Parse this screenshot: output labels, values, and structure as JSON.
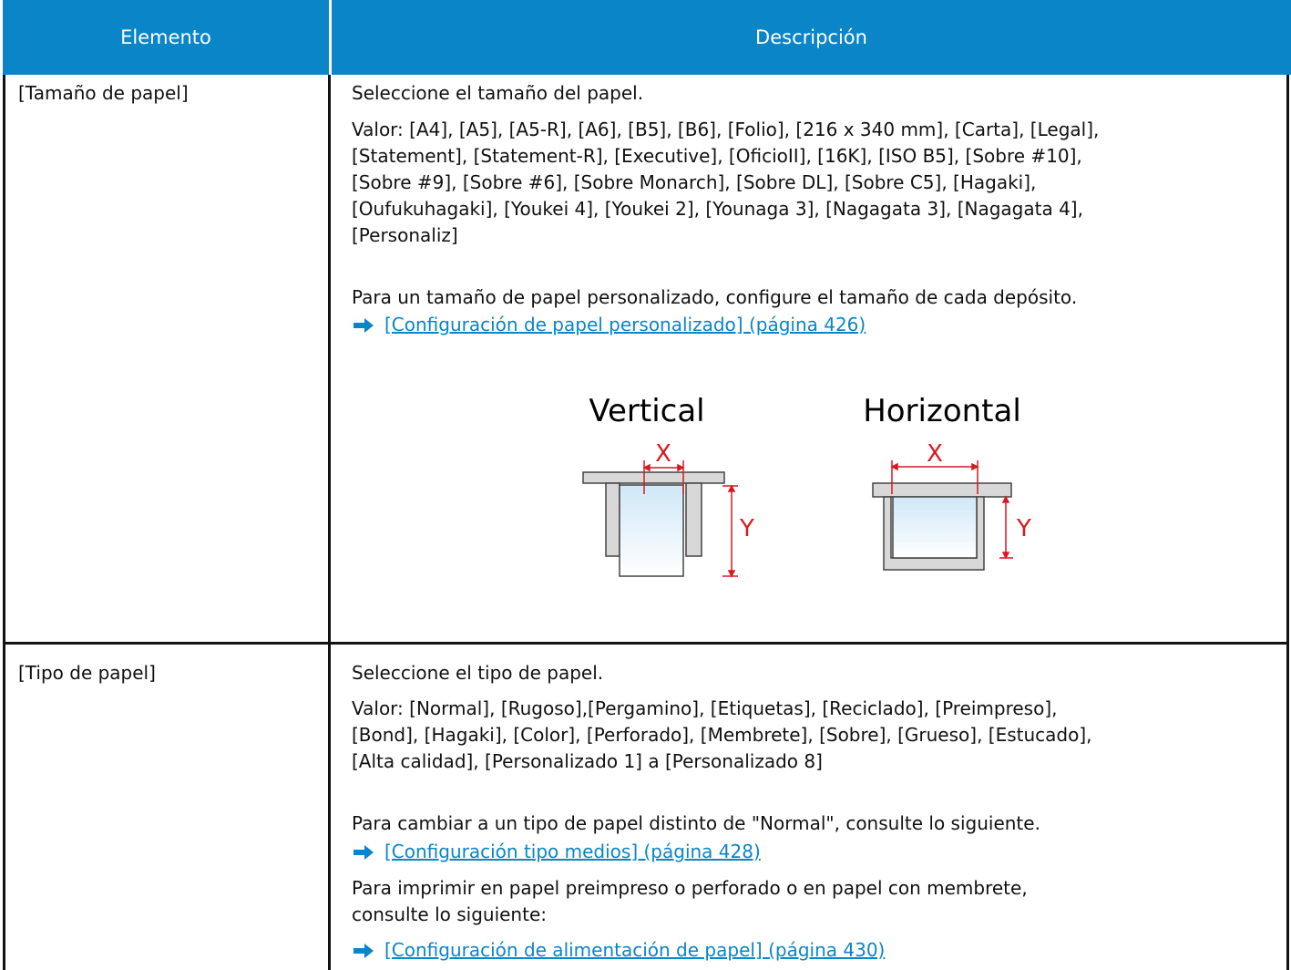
{
  "table": {
    "header": [
      "Elemento",
      "Descripción"
    ],
    "rows": [
      {
        "item": "[Tamaño de papel]",
        "intro": "Seleccione el tamaño del papel.",
        "value_lines": [
          "Valor: [A4], [A5], [A5-R], [A6], [B5], [B6], [Folio], [216 x 340 mm], [Carta], [Legal],",
          "[Statement], [Statement-R], [Executive], [OficioII], [16K], [ISO B5], [Sobre #10],",
          "[Sobre #9], [Sobre #6], [Sobre Monarch], [Sobre DL], [Sobre C5], [Hagaki],",
          "[Oufukuhagaki], [Youkei 4], [Youkei 2], [Younaga 3], [Nagagata 3], [Nagagata 4],",
          "[Personaliz]"
        ],
        "note": "Para un tamaño de papel personalizado, configure el tamaño de cada depósito.",
        "link": "[Configuración de papel personalizado] (página 426)",
        "diagram": {
          "vertical": "Vertical",
          "horizontal": "Horizontal",
          "x": "X",
          "y": "Y"
        }
      },
      {
        "item": "[Tipo de papel]",
        "intro": "Seleccione el tipo de papel.",
        "value_lines": [
          "Valor: [Normal], [Rugoso],[Pergamino], [Etiquetas], [Reciclado], [Preimpreso],",
          "[Bond], [Hagaki], [Color], [Perforado], [Membrete], [Sobre], [Grueso], [Estucado],",
          "[Alta calidad], [Personalizado 1] a [Personalizado 8]"
        ],
        "note": "Para cambiar a un tipo de papel distinto de \"Normal\", consulte lo siguiente.",
        "link": "[Configuración tipo medios] (página 428)",
        "note2_lines": [
          "Para imprimir en papel preimpreso o perforado o en papel con membrete,",
          "consulte lo siguiente:"
        ],
        "link2": "[Configuración de alimentación de papel] (página 430)"
      }
    ]
  }
}
